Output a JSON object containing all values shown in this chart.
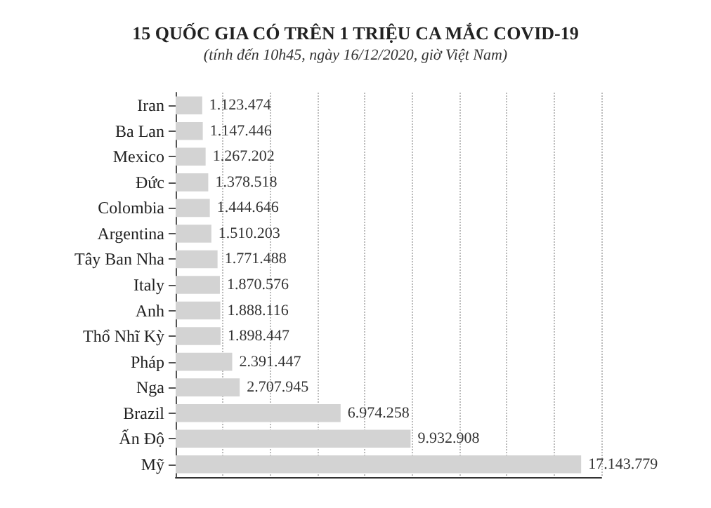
{
  "chart_data": {
    "type": "bar",
    "orientation": "horizontal",
    "title": "15 QUỐC GIA CÓ TRÊN 1 TRIỆU CA MẮC COVID-19",
    "subtitle": "(tính đến 10h45, ngày 16/12/2020, giờ Việt Nam)",
    "categories": [
      "Iran",
      "Ba Lan",
      "Mexico",
      "Đức",
      "Colombia",
      "Argentina",
      "Tây Ban Nha",
      "Italy",
      "Anh",
      "Thổ Nhĩ Kỳ",
      "Pháp",
      "Nga",
      "Brazil",
      "Ấn Độ",
      "Mỹ"
    ],
    "values": [
      1123474,
      1147446,
      1267202,
      1378518,
      1444646,
      1510203,
      1771488,
      1870576,
      1888116,
      1898447,
      2391447,
      2707945,
      6974258,
      9932908,
      17143779
    ],
    "value_labels": [
      "1.123.474",
      "1.147.446",
      "1.267.202",
      "1.378.518",
      "1.444.646",
      "1.510.203",
      "1.771.488",
      "1.870.576",
      "1.888.116",
      "1.898.447",
      "2.391.447",
      "2.707.945",
      "6.974.258",
      "9.932.908",
      "17.143.779"
    ],
    "color": "#d3d3d3",
    "xlim": [
      0,
      18000000
    ],
    "xticks": [
      {
        "value": 0,
        "label": null
      },
      {
        "value": 2000000,
        "label": null
      },
      {
        "value": 4000000,
        "label": null
      },
      {
        "value": 6000000,
        "label": null
      },
      {
        "value": 8000000,
        "label": null
      },
      {
        "value": 10000000,
        "label": null
      },
      {
        "value": 12000000,
        "label": null
      },
      {
        "value": 14000000,
        "label": null
      },
      {
        "value": 16000000,
        "label": null
      },
      {
        "value": 18000000,
        "label": null
      }
    ],
    "tick_labels": "y",
    "grid": "x"
  }
}
